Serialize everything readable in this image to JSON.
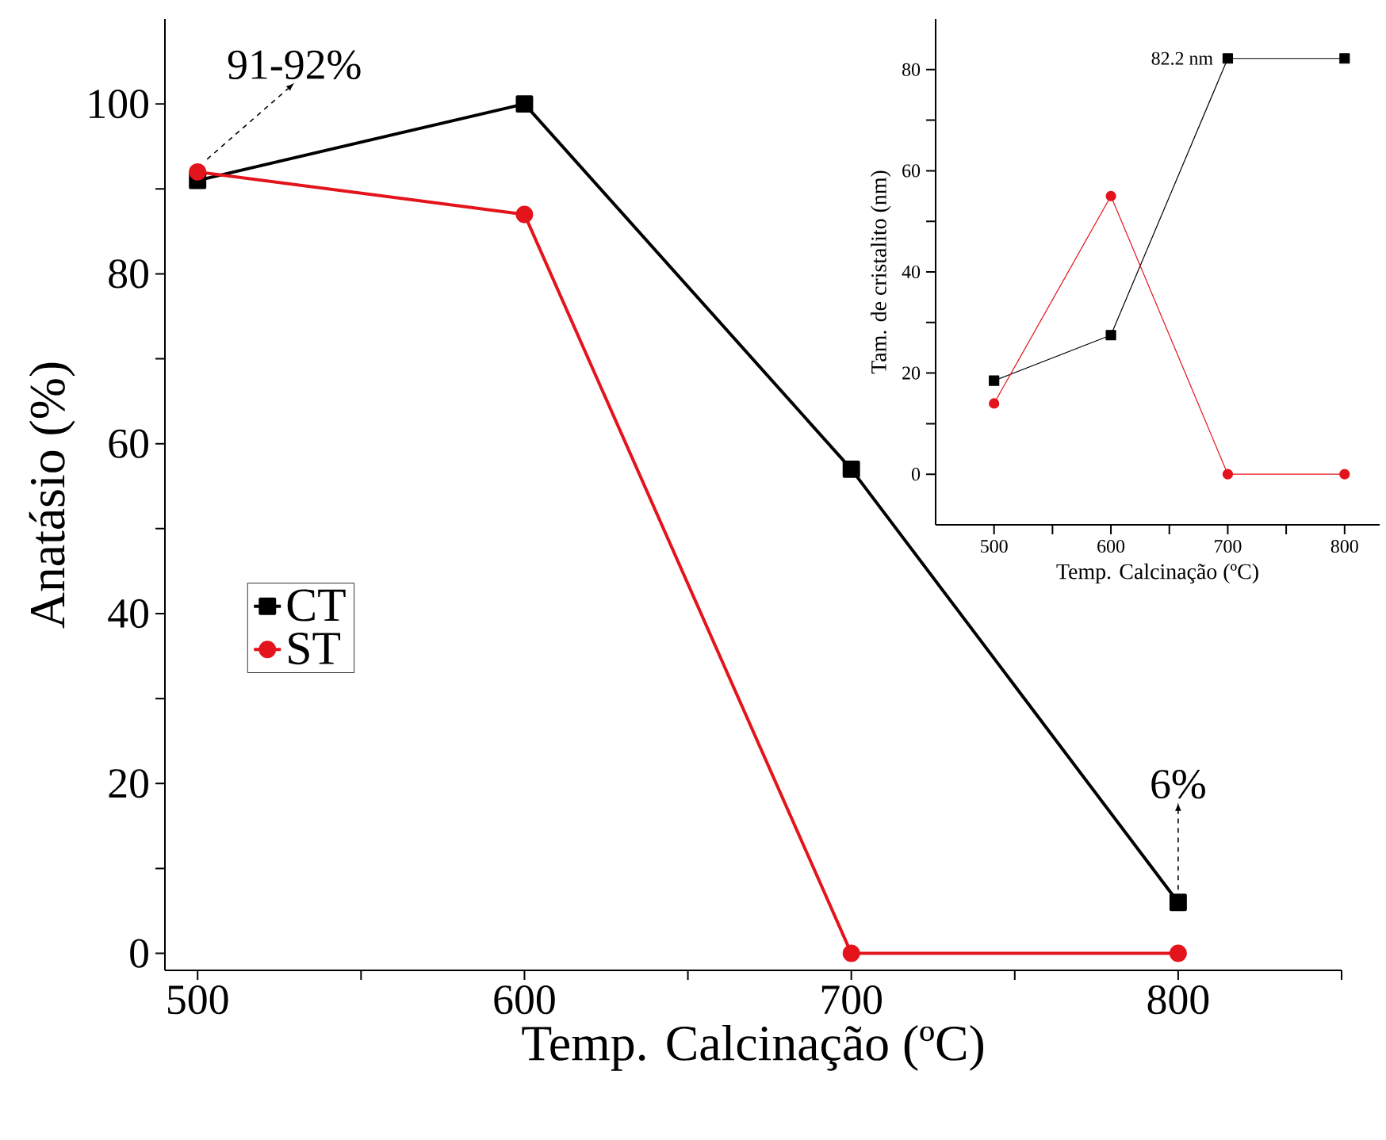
{
  "chart_data": [
    {
      "type": "line",
      "xlabel": "Temp. Calcinação (ºC)",
      "ylabel": "Anatásio (%)",
      "x": [
        500,
        600,
        700,
        800
      ],
      "series": [
        {
          "name": "CT",
          "color": "#000000",
          "marker": "square",
          "values": [
            91,
            100,
            57,
            6
          ]
        },
        {
          "name": "ST",
          "color": "#e3141b",
          "marker": "circle",
          "values": [
            92,
            87,
            0,
            0
          ]
        }
      ],
      "xlim": [
        490,
        850
      ],
      "ylim": [
        -2,
        110
      ],
      "xticks": [
        500,
        {
          "value": 550,
          "label": null
        },
        600,
        {
          "value": 650,
          "label": null
        },
        700,
        {
          "value": 750,
          "label": null
        },
        800,
        {
          "value": 850,
          "label": null
        }
      ],
      "yticks": [
        0,
        {
          "value": 10,
          "label": null
        },
        20,
        {
          "value": 30,
          "label": null
        },
        40,
        {
          "value": 50,
          "label": null
        },
        60,
        {
          "value": 70,
          "label": null
        },
        80,
        {
          "value": 90,
          "label": null
        },
        100
      ],
      "annotations": [
        {
          "text": "91-92%",
          "x": 500,
          "y": 92
        },
        {
          "text": "6%",
          "x": 800,
          "y": 6
        }
      ],
      "legend": "left",
      "grid": false
    },
    {
      "type": "line",
      "xlabel": "Temp. Calcinação (ºC)",
      "ylabel": "Tam. de cristalito (nm)",
      "x": [
        500,
        600,
        700,
        800
      ],
      "series": [
        {
          "color": "#000000",
          "marker": "square",
          "values": [
            18.5,
            27.5,
            82.2,
            82.2
          ]
        },
        {
          "color": "#e3141b",
          "marker": "circle",
          "values": [
            14,
            55,
            0,
            0
          ]
        }
      ],
      "xlim": [
        450,
        830
      ],
      "ylim": [
        -10,
        90
      ],
      "xticks": [
        500,
        {
          "value": 550,
          "label": null
        },
        600,
        {
          "value": 650,
          "label": null
        },
        700,
        {
          "value": 750,
          "label": null
        },
        800
      ],
      "yticks": [
        0,
        {
          "value": 10,
          "label": null
        },
        20,
        {
          "value": 30,
          "label": null
        },
        40,
        {
          "value": 50,
          "label": null
        },
        60,
        {
          "value": 70,
          "label": null
        },
        80
      ],
      "annotations": [
        {
          "text": "82.2 nm",
          "x": 700,
          "y": 82.2
        }
      ],
      "legend": false,
      "grid": false
    }
  ]
}
